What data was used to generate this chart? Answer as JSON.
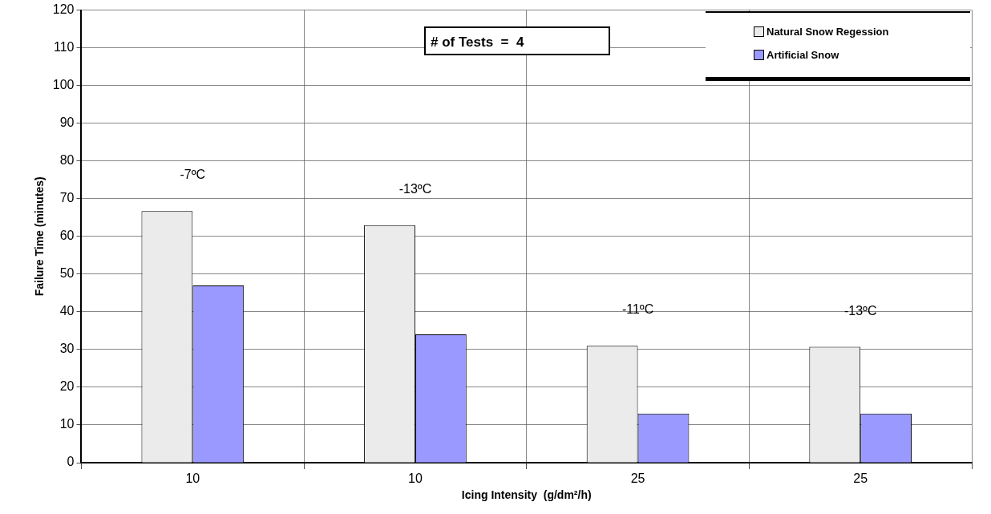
{
  "chart_data": {
    "type": "bar",
    "xlabel": "Icing Intensity  (g/dm²/h)",
    "ylabel": "Failure Time (minutes)",
    "categories": [
      "10",
      "10",
      "25",
      "25"
    ],
    "series": [
      {
        "name": "Natural Snow Regession",
        "color": "#ebebeb",
        "values": [
          66.7,
          63,
          31,
          30.7
        ]
      },
      {
        "name": "Artificial Snow",
        "color": "#9999ff",
        "values": [
          47,
          34,
          13,
          13
        ]
      }
    ],
    "ylim": [
      0,
      120
    ],
    "yticks": [
      0,
      10,
      20,
      30,
      40,
      50,
      60,
      70,
      80,
      90,
      100,
      110,
      120
    ],
    "grid": true,
    "legend": "top right",
    "annotations": [
      "# of Tests  =  4",
      "-7ºC",
      "-13ºC",
      "-11ºC",
      "-13ºC"
    ]
  }
}
